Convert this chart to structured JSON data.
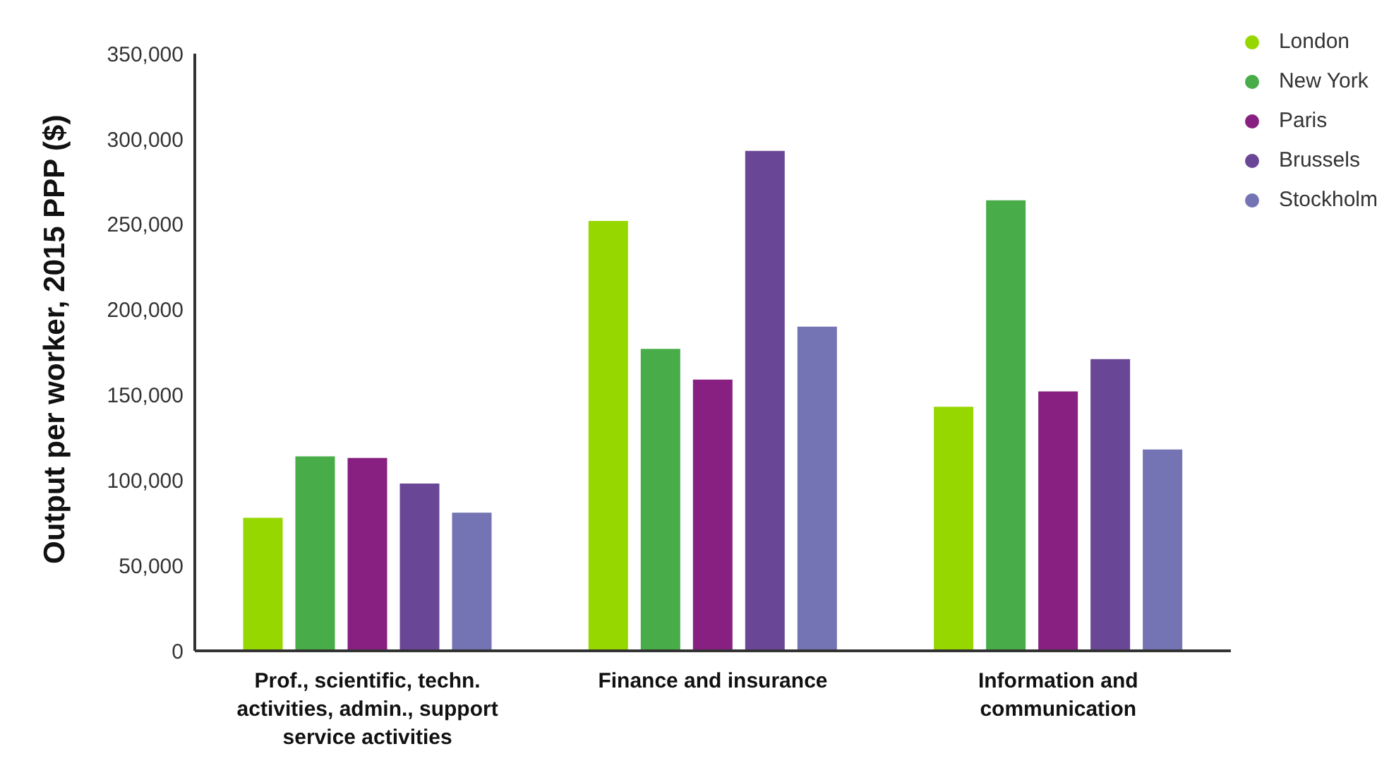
{
  "chart_data": {
    "type": "bar",
    "ylabel": "Output per worker, 2015 PPP ($)",
    "categories": [
      "Prof., scientific, techn. activities, admin., support service activities",
      "Finance and insurance",
      "Information and communication"
    ],
    "series": [
      {
        "name": "London",
        "color": "#97d700",
        "values": [
          78000,
          252000,
          143000
        ]
      },
      {
        "name": "New York",
        "color": "#48ad49",
        "values": [
          114000,
          177000,
          264000
        ]
      },
      {
        "name": "Paris",
        "color": "#872080",
        "values": [
          113000,
          159000,
          152000
        ]
      },
      {
        "name": "Brussels",
        "color": "#6a4796",
        "values": [
          98000,
          293000,
          171000
        ]
      },
      {
        "name": "Stockholm",
        "color": "#7474b4",
        "values": [
          81000,
          190000,
          118000
        ]
      }
    ],
    "ylim": [
      0,
      350000
    ],
    "yticks": [
      0,
      {
        "value": 50000,
        "label": "50,000"
      },
      {
        "value": 100000,
        "label": "100,000"
      },
      {
        "value": 150000,
        "label": "150,000"
      },
      {
        "value": 200000,
        "label": "200,000"
      },
      {
        "value": 250000,
        "label": "250,000"
      },
      {
        "value": 300000,
        "label": "300,000"
      },
      {
        "value": 350000,
        "label": "350,000"
      }
    ],
    "grid": false,
    "legend": "top right"
  }
}
